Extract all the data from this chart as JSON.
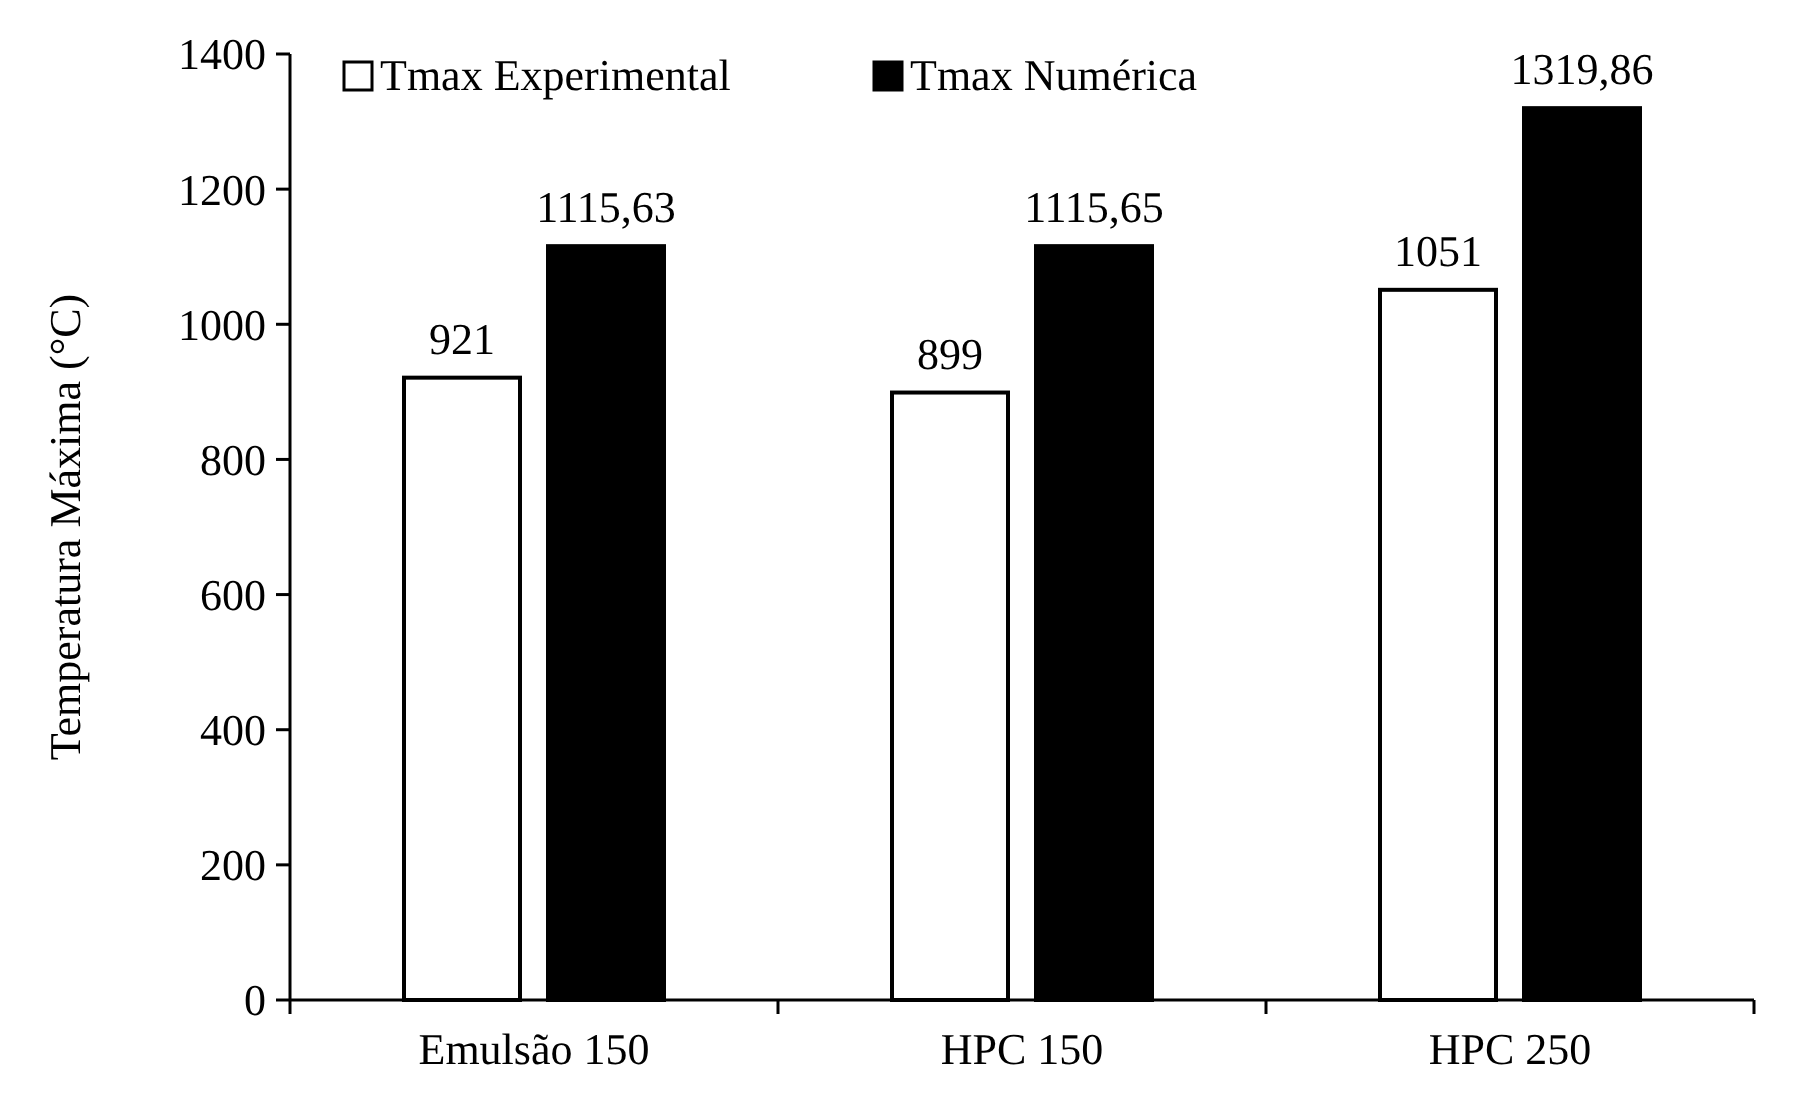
{
  "chart_data": {
    "type": "bar",
    "ylabel": "Temperatura Máxima (°C)",
    "categories": [
      "Emulsão 150",
      "HPC 150",
      "HPC 250"
    ],
    "series": [
      {
        "name": "Tmax Experimental",
        "color": "#ffffff",
        "values": [
          921,
          899,
          1051
        ],
        "value_labels": [
          "921",
          "899",
          "1051"
        ]
      },
      {
        "name": "Tmax Numérica",
        "color": "#000000",
        "values": [
          1115.63,
          1115.65,
          1319.86
        ],
        "value_labels": [
          "1115,63",
          "1115,65",
          "1319,86"
        ]
      }
    ],
    "ylim": [
      0,
      1400
    ],
    "yticks": [
      0,
      200,
      400,
      600,
      800,
      1000,
      1200,
      1400
    ],
    "grid": false,
    "legend": "top left"
  }
}
